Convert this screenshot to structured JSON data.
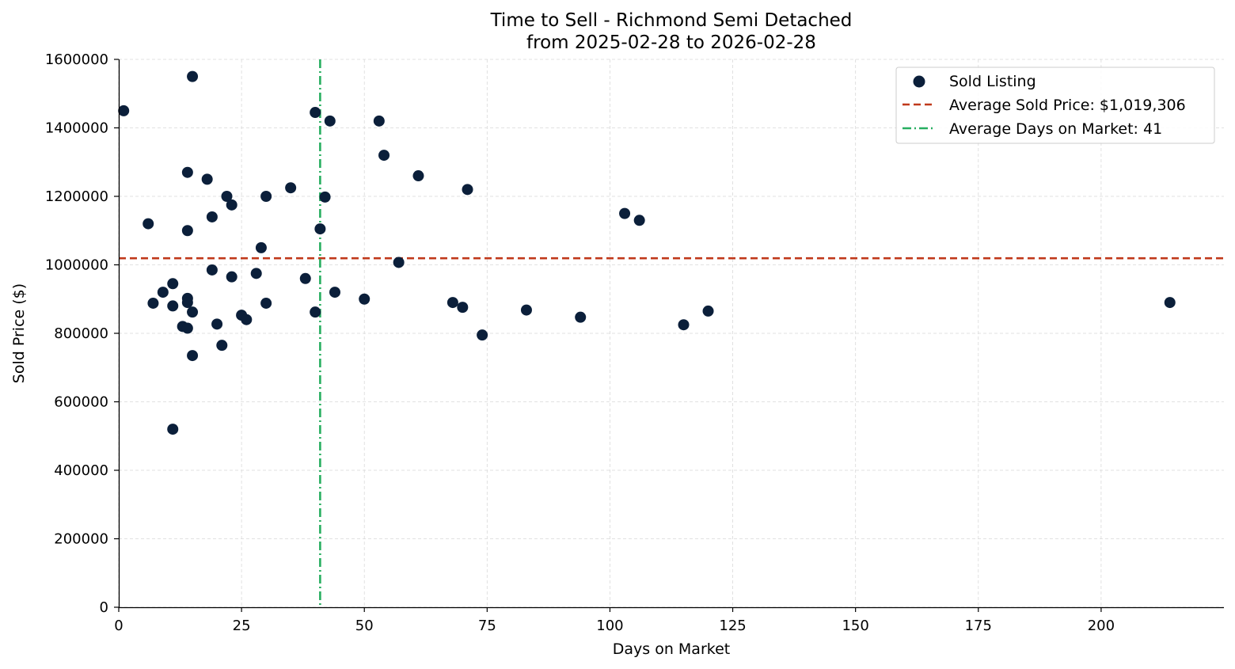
{
  "chart_data": {
    "type": "scatter",
    "title": "Time to Sell - Richmond Semi Detached",
    "subtitle": "from 2025-02-28 to 2026-02-28",
    "xlabel": "Days on Market",
    "ylabel": "Sold Price ($)",
    "xlim": [
      0,
      225
    ],
    "ylim": [
      0,
      1600000
    ],
    "xticks": [
      0,
      25,
      50,
      75,
      100,
      125,
      150,
      175,
      200
    ],
    "yticks": [
      0,
      200000,
      400000,
      600000,
      800000,
      1000000,
      1200000,
      1400000,
      1600000
    ],
    "grid": true,
    "legend_position": "top-right",
    "colors": {
      "points": "#0b1f3a",
      "avg_price": "#c0391b",
      "avg_days": "#27ae60",
      "grid": "#d9d9d9"
    },
    "series": [
      {
        "name": "Sold Listing",
        "points": [
          [
            1,
            1450000
          ],
          [
            6,
            1120000
          ],
          [
            7,
            888000
          ],
          [
            9,
            920000
          ],
          [
            11,
            945000
          ],
          [
            11,
            880000
          ],
          [
            11,
            520000
          ],
          [
            13,
            820000
          ],
          [
            14,
            1270000
          ],
          [
            14,
            1100000
          ],
          [
            14,
            902000
          ],
          [
            14,
            890000
          ],
          [
            14,
            815000
          ],
          [
            15,
            1550000
          ],
          [
            15,
            862000
          ],
          [
            15,
            735000
          ],
          [
            18,
            1250000
          ],
          [
            19,
            1140000
          ],
          [
            19,
            985000
          ],
          [
            20,
            827000
          ],
          [
            21,
            765000
          ],
          [
            22,
            1200000
          ],
          [
            23,
            1175000
          ],
          [
            23,
            965000
          ],
          [
            25,
            853000
          ],
          [
            26,
            840000
          ],
          [
            28,
            975000
          ],
          [
            29,
            1050000
          ],
          [
            30,
            1200000
          ],
          [
            30,
            888000
          ],
          [
            35,
            1225000
          ],
          [
            38,
            960000
          ],
          [
            40,
            1445000
          ],
          [
            40,
            862000
          ],
          [
            41,
            1105000
          ],
          [
            42,
            1198000
          ],
          [
            43,
            1420000
          ],
          [
            44,
            920000
          ],
          [
            50,
            900000
          ],
          [
            53,
            1420000
          ],
          [
            54,
            1320000
          ],
          [
            57,
            1007000
          ],
          [
            61,
            1260000
          ],
          [
            68,
            890000
          ],
          [
            70,
            876000
          ],
          [
            71,
            1220000
          ],
          [
            74,
            795000
          ],
          [
            83,
            868000
          ],
          [
            94,
            847000
          ],
          [
            103,
            1150000
          ],
          [
            106,
            1130000
          ],
          [
            115,
            825000
          ],
          [
            120,
            865000
          ],
          [
            214,
            890000
          ]
        ]
      }
    ],
    "reference_lines": {
      "avg_price": {
        "value": 1019306,
        "label": "Average Sold Price: $1,019,306"
      },
      "avg_days": {
        "value": 41,
        "label": "Average Days on Market: 41"
      }
    }
  }
}
